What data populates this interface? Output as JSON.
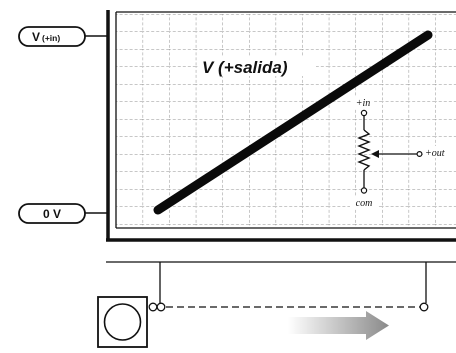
{
  "labels": {
    "v_plus_in": "V",
    "v_plus_in_sub": "(+in)",
    "zero_v": "0 V",
    "v_plus_salida": "V (+salida)",
    "pot_top": "+in",
    "pot_bottom": "com",
    "pot_wiper": "+out"
  },
  "colors": {
    "ink": "#111111",
    "grid": "#9a9a9a",
    "arrow_start": "#ffffff",
    "arrow_end": "#8a8a8a"
  }
}
